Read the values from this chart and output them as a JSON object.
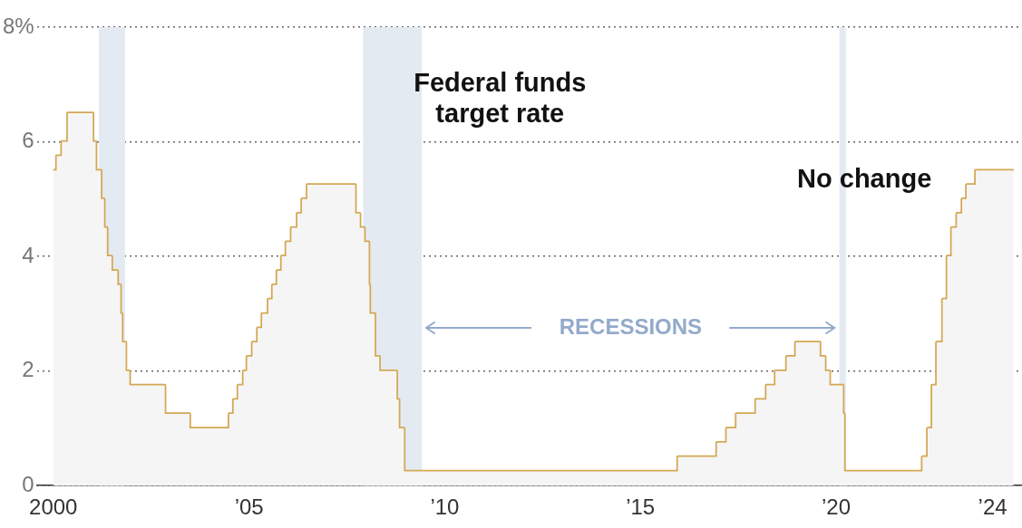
{
  "chart_data": {
    "type": "step",
    "annotations": [
      "Federal funds target rate",
      "No change",
      "RECESSIONS"
    ],
    "x": [
      "2000-01-01",
      "2000-02-02",
      "2000-03-21",
      "2000-05-16",
      "2001-01-03",
      "2001-01-31",
      "2001-03-20",
      "2001-04-18",
      "2001-05-15",
      "2001-06-27",
      "2001-08-21",
      "2001-09-17",
      "2001-10-02",
      "2001-11-06",
      "2001-12-11",
      "2002-11-06",
      "2003-06-25",
      "2004-06-30",
      "2004-08-10",
      "2004-09-21",
      "2004-11-10",
      "2004-12-14",
      "2005-02-02",
      "2005-03-22",
      "2005-05-03",
      "2005-06-30",
      "2005-08-09",
      "2005-09-20",
      "2005-11-01",
      "2005-12-13",
      "2006-01-31",
      "2006-03-28",
      "2006-05-10",
      "2006-06-29",
      "2007-09-18",
      "2007-10-31",
      "2007-12-11",
      "2008-01-22",
      "2008-01-30",
      "2008-03-18",
      "2008-04-30",
      "2008-10-08",
      "2008-10-29",
      "2008-12-16",
      "2015-12-17",
      "2016-12-15",
      "2017-03-16",
      "2017-06-15",
      "2017-12-14",
      "2018-03-22",
      "2018-06-14",
      "2018-09-27",
      "2018-12-20",
      "2019-08-01",
      "2019-09-19",
      "2019-10-31",
      "2020-03-04",
      "2020-03-16",
      "2022-03-17",
      "2022-05-05",
      "2022-06-16",
      "2022-07-28",
      "2022-09-22",
      "2022-11-03",
      "2022-12-15",
      "2023-02-02",
      "2023-03-23",
      "2023-05-04",
      "2023-07-27",
      "2024-07-15"
    ],
    "series": [
      {
        "type": "area",
        "color": "#f5f5f5",
        "values": [
          5.5,
          5.75,
          6.0,
          6.5,
          6.0,
          5.5,
          5.0,
          4.5,
          4.0,
          3.75,
          3.5,
          3.0,
          2.5,
          2.0,
          1.75,
          1.25,
          1.0,
          1.25,
          1.5,
          1.75,
          2.0,
          2.25,
          2.5,
          2.75,
          3.0,
          3.25,
          3.5,
          3.75,
          4.0,
          4.25,
          4.5,
          4.75,
          5.0,
          5.25,
          4.75,
          4.5,
          4.25,
          3.5,
          3.0,
          2.25,
          2.0,
          1.5,
          1.0,
          0.25,
          0.5,
          0.75,
          1.0,
          1.25,
          1.5,
          1.75,
          2.0,
          2.25,
          2.5,
          2.25,
          2.0,
          1.75,
          1.25,
          0.25,
          0.5,
          1.0,
          1.75,
          2.5,
          3.25,
          4.0,
          4.5,
          4.75,
          5.0,
          5.25,
          5.5,
          5.5
        ]
      },
      {
        "type": "step",
        "color": "#d4a752",
        "values": [
          5.5,
          5.75,
          6.0,
          6.5,
          6.0,
          5.5,
          5.0,
          4.5,
          4.0,
          3.75,
          3.5,
          3.0,
          2.5,
          2.0,
          1.75,
          1.25,
          1.0,
          1.25,
          1.5,
          1.75,
          2.0,
          2.25,
          2.5,
          2.75,
          3.0,
          3.25,
          3.5,
          3.75,
          4.0,
          4.25,
          4.5,
          4.75,
          5.0,
          5.25,
          4.75,
          4.5,
          4.25,
          3.5,
          3.0,
          2.25,
          2.0,
          1.5,
          1.0,
          0.25,
          0.5,
          0.75,
          1.0,
          1.25,
          1.5,
          1.75,
          2.0,
          2.25,
          2.5,
          2.25,
          2.0,
          1.75,
          1.25,
          0.25,
          0.5,
          1.0,
          1.75,
          2.5,
          3.25,
          4.0,
          4.5,
          4.75,
          5.0,
          5.25,
          5.5,
          5.5
        ]
      }
    ],
    "xlim": [
      "1999-08",
      "2024-10"
    ],
    "xticks": [
      {
        "value": "2000",
        "label": "2000"
      },
      {
        "value": "2005",
        "label": "’05"
      },
      {
        "value": "2010",
        "label": "’10"
      },
      {
        "value": "2015",
        "label": "’15"
      },
      {
        "value": "2020",
        "label": "’20"
      },
      {
        "value": "2024",
        "label": "’24"
      }
    ],
    "ylim": [
      0,
      8
    ],
    "yticks": [
      0,
      2,
      4,
      6,
      {
        "value": 8,
        "label": "8%"
      }
    ],
    "bands": [
      {
        "axis": "x",
        "from": "2001-03",
        "to": "2001-11",
        "color": "#e3eaf2"
      },
      {
        "axis": "x",
        "from": "2007-12",
        "to": "2009-06",
        "color": "#e3eaf2"
      },
      {
        "axis": "x",
        "from": "2020-02",
        "to": "2020-04",
        "color": "#e3eaf2"
      }
    ],
    "grid": "y",
    "legend": false,
    "marker": "none",
    "line_style": "solid"
  }
}
